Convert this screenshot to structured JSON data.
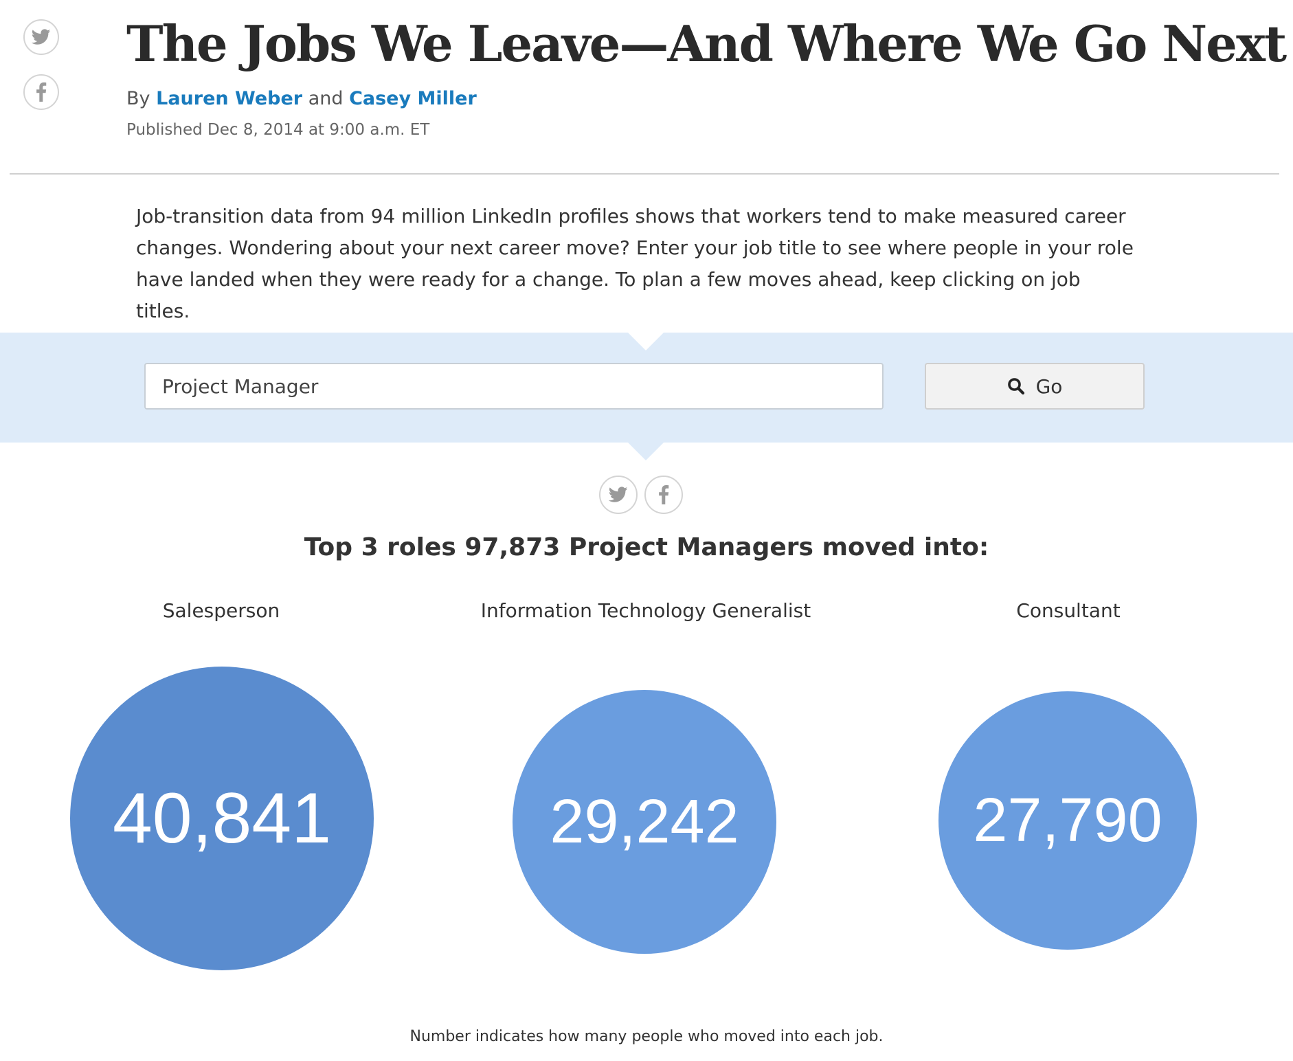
{
  "share": {
    "twitter_icon": "twitter-bird-icon",
    "facebook_icon": "facebook-f-icon",
    "icon_color": "#9a9a9a",
    "border_color": "#d4d4d4"
  },
  "article": {
    "headline": "The Jobs We Leave—And Where We Go Next",
    "byline_prefix": "By",
    "author_1": "Lauren Weber",
    "byline_joiner": "and",
    "author_2": "Casey Miller",
    "published": "Published Dec 8, 2014 at 9:00 a.m. ET",
    "intro": "Job-transition data from 94 million LinkedIn profiles shows that workers tend to make measured career changes. Wondering about your next career move? Enter your job title to see where people in your role have landed when they were ready for a change. To plan a few moves ahead, keep clicking on job titles."
  },
  "search": {
    "value": "Project Manager",
    "button_label": "Go",
    "button_icon": "search-icon",
    "band_color": "#deebf9"
  },
  "results": {
    "heading": "Top 3 roles 97,873 Project Managers moved into:",
    "footnote": "Number indicates how many people who moved into each job.",
    "roles": [
      {
        "label": "Salesperson",
        "count": "40,841",
        "value": 40841,
        "color": "#5a8ccf"
      },
      {
        "label": "Information Technology Generalist",
        "count": "29,242",
        "value": 29242,
        "color": "#6a9ddf"
      },
      {
        "label": "Consultant",
        "count": "27,790",
        "value": 27790,
        "color": "#6a9ddf"
      }
    ]
  },
  "colors": {
    "link": "#1a7bbd",
    "text": "#333333",
    "rule": "#d0d0d0"
  }
}
